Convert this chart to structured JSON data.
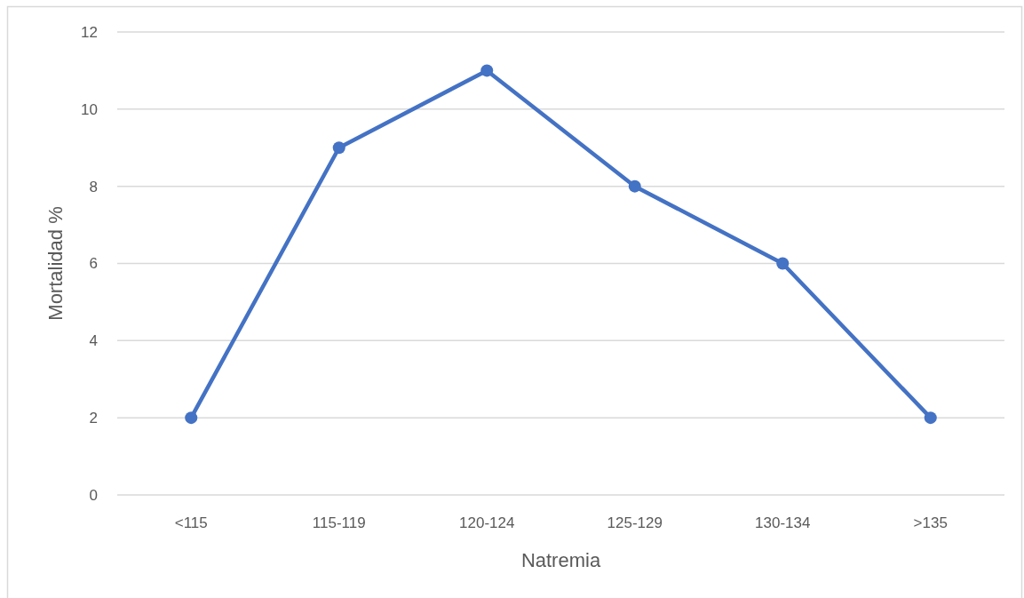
{
  "chart_data": {
    "type": "line",
    "xlabel": "Natremia",
    "ylabel": "Mortalidad %",
    "categories": [
      "<115",
      "115-119",
      "120-124",
      "125-129",
      "130-134",
      ">135"
    ],
    "series": [
      {
        "color": "#4472c4",
        "values": [
          2,
          9,
          11,
          8,
          6,
          2
        ]
      }
    ],
    "ylim": [
      0,
      12
    ],
    "yticks": [
      0,
      2,
      4,
      6,
      8,
      10,
      12
    ],
    "grid": "y",
    "marker": "circle",
    "line_style": "solid"
  }
}
